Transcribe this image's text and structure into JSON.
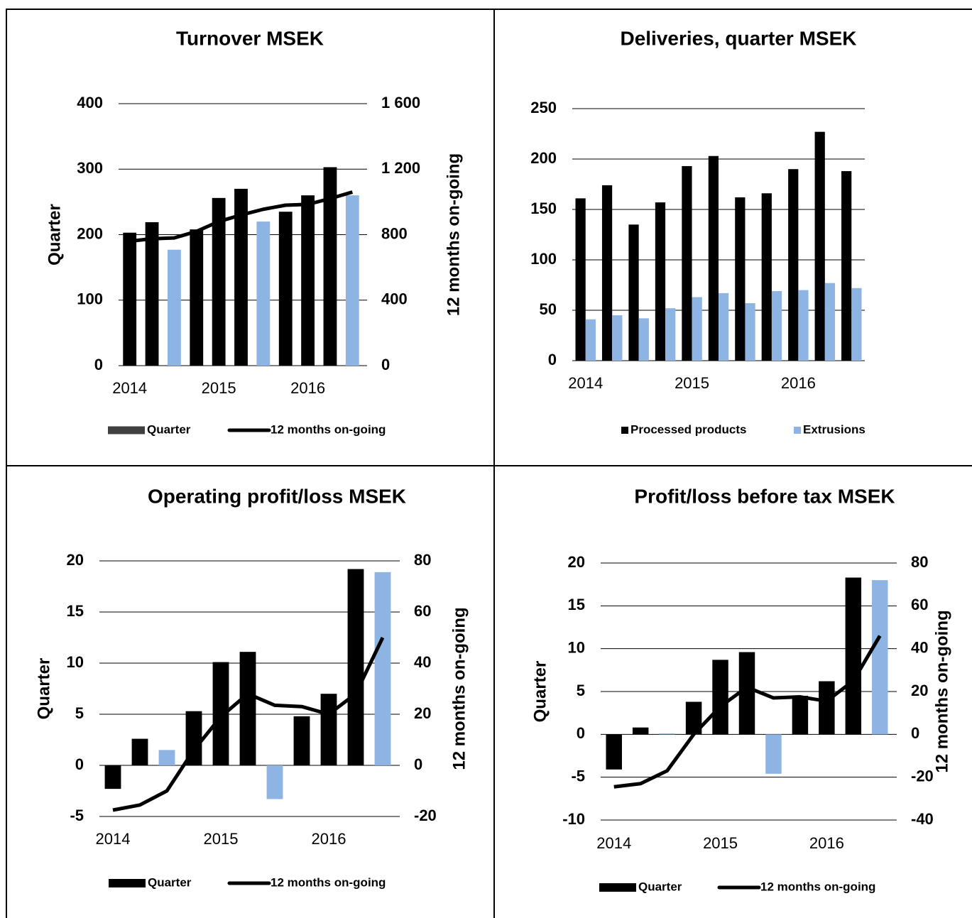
{
  "chart_data": [
    {
      "type": "combo",
      "title": "Turnover MSEK",
      "y_label": "Quarter",
      "y2_label": "12 months on-going",
      "categories": [
        "2014",
        null,
        null,
        null,
        "2015",
        null,
        null,
        null,
        "2016",
        null,
        null
      ],
      "ylim": [
        0,
        400
      ],
      "yticks": [
        0,
        100,
        200,
        300,
        400
      ],
      "y2lim": [
        0,
        1600
      ],
      "y2ticks": [
        0,
        400,
        800,
        {
          "value": 1200,
          "label": "1 200"
        },
        {
          "value": 1600,
          "label": "1 600"
        }
      ],
      "grid": true,
      "series": [
        {
          "name": "Quarter",
          "type": "bar",
          "color": "#404040",
          "colors": [
            "#000000",
            "#000000",
            "#8db4e2",
            "#000000",
            "#000000",
            "#000000",
            "#8db4e2",
            "#000000",
            "#000000",
            "#000000",
            "#8db4e2"
          ],
          "values": [
            203,
            219,
            177,
            208,
            256,
            270,
            220,
            235,
            260,
            303,
            260
          ]
        },
        {
          "name": "12 months on-going",
          "type": "line",
          "axis": "y2",
          "color": "#000000",
          "values": [
            760,
            775,
            780,
            820,
            880,
            920,
            955,
            980,
            985,
            1020,
            1060
          ]
        }
      ]
    },
    {
      "type": "bar",
      "title": "Deliveries, quarter MSEK",
      "categories": [
        "2014",
        null,
        null,
        null,
        "2015",
        null,
        null,
        null,
        "2016",
        null,
        null
      ],
      "ylim": [
        0,
        250
      ],
      "yticks": [
        0,
        50,
        100,
        150,
        200,
        250
      ],
      "grid": true,
      "series": [
        {
          "name": "Processed products",
          "type": "bar",
          "color": "#000000",
          "values": [
            161,
            174,
            135,
            157,
            193,
            203,
            162,
            166,
            190,
            227,
            188
          ]
        },
        {
          "name": "Extrusions",
          "type": "bar",
          "color": "#8db4e2",
          "values": [
            41,
            45,
            42,
            52,
            63,
            67,
            57,
            69,
            70,
            77,
            72
          ]
        }
      ]
    },
    {
      "type": "combo",
      "title": "Operating profit/loss MSEK",
      "y_label": "Quarter",
      "y2_label": "12 months on-going",
      "categories": [
        "2014",
        null,
        null,
        null,
        "2015",
        null,
        null,
        null,
        "2016",
        null,
        null
      ],
      "ylim": [
        -5,
        20
      ],
      "yticks": [
        -5,
        0,
        5,
        10,
        15,
        20
      ],
      "y2lim": [
        -20,
        80
      ],
      "y2ticks": [
        -20,
        0,
        20,
        40,
        60,
        80
      ],
      "grid": true,
      "series": [
        {
          "name": "Quarter",
          "type": "bar",
          "color": "#000000",
          "colors": [
            "#000000",
            "#000000",
            "#8db4e2",
            "#000000",
            "#000000",
            "#000000",
            "#8db4e2",
            "#000000",
            "#000000",
            "#000000",
            "#8db4e2"
          ],
          "values": [
            -2.3,
            2.6,
            1.5,
            5.3,
            10.1,
            11.1,
            -3.3,
            4.8,
            7.0,
            19.2,
            18.9
          ]
        },
        {
          "name": "12 months on-going",
          "type": "line",
          "axis": "y2",
          "color": "#000000",
          "values": [
            -17.5,
            -15.5,
            -10,
            6,
            19,
            28,
            23.5,
            23,
            20,
            28,
            50
          ]
        }
      ]
    },
    {
      "type": "combo",
      "title": "Profit/loss before tax MSEK",
      "y_label": "Quarter",
      "y2_label": "12 months on-going",
      "categories": [
        "2014",
        null,
        null,
        null,
        "2015",
        null,
        null,
        null,
        "2016",
        null,
        null
      ],
      "ylim": [
        -10,
        20
      ],
      "yticks": [
        -10,
        -5,
        0,
        5,
        10,
        15,
        20
      ],
      "y2lim": [
        -40,
        80
      ],
      "y2ticks": [
        -40,
        -20,
        0,
        20,
        40,
        60,
        80
      ],
      "grid": true,
      "series": [
        {
          "name": "Quarter",
          "type": "bar",
          "color": "#000000",
          "colors": [
            "#000000",
            "#000000",
            "#8db4e2",
            "#000000",
            "#000000",
            "#000000",
            "#8db4e2",
            "#000000",
            "#000000",
            "#000000",
            "#8db4e2"
          ],
          "values": [
            -4.1,
            0.8,
            0.1,
            3.8,
            8.7,
            9.6,
            -4.6,
            4.5,
            6.2,
            18.3,
            18.0
          ]
        },
        {
          "name": "12 months on-going",
          "type": "line",
          "axis": "y2",
          "color": "#000000",
          "values": [
            -24.5,
            -23,
            -17,
            0,
            13,
            22,
            17,
            17.5,
            15.5,
            25,
            46
          ]
        }
      ]
    }
  ]
}
